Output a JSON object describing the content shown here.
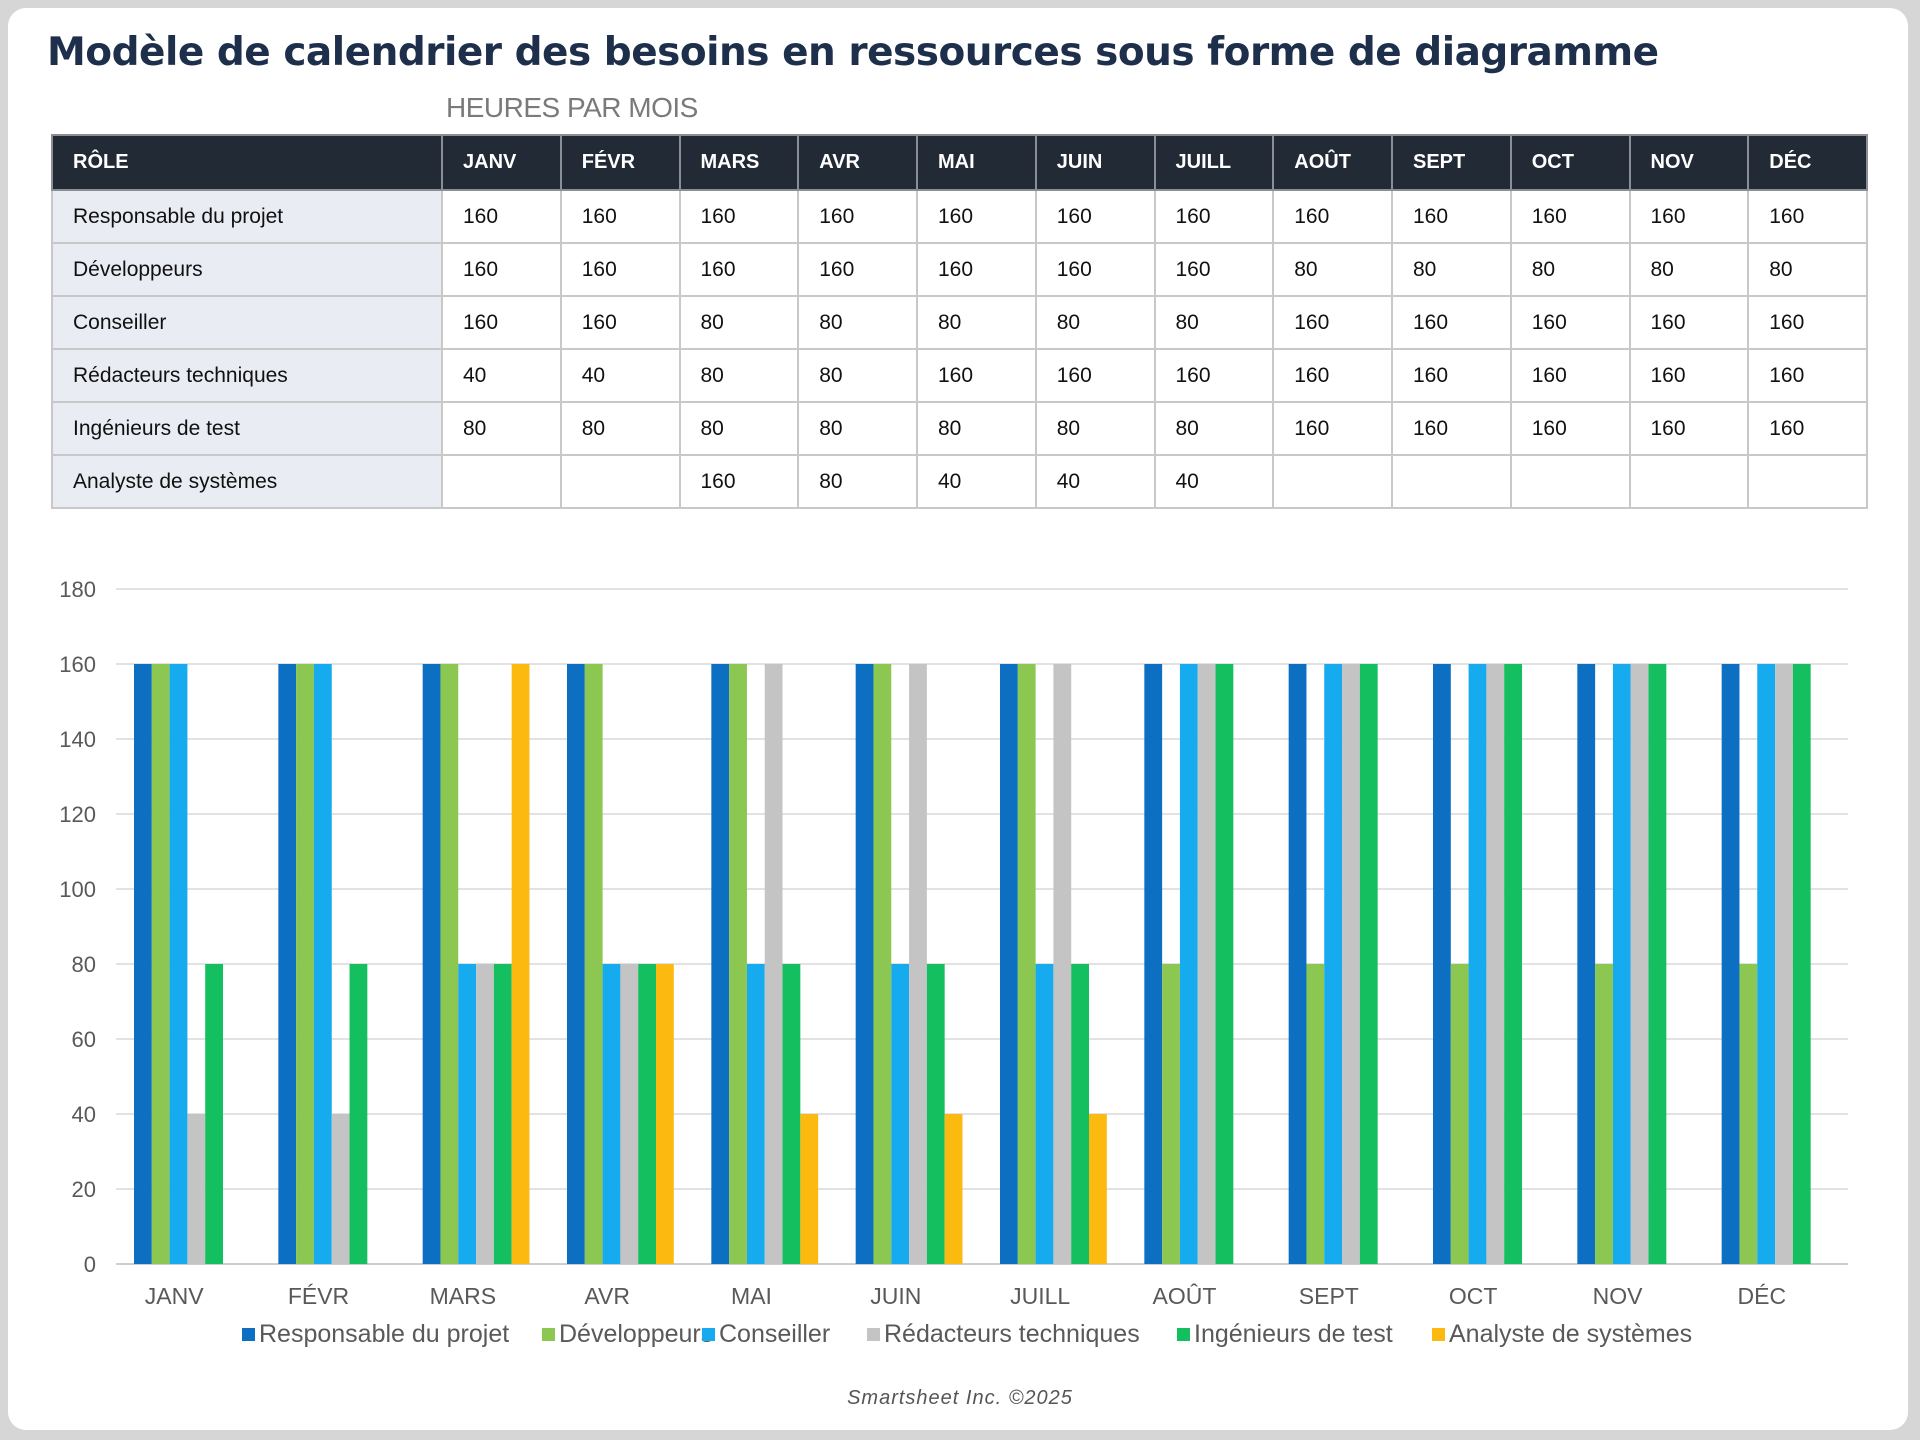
{
  "page": {
    "title": "Modèle de calendrier des besoins en ressources sous forme de diagramme",
    "subtitle": "HEURES PAR MOIS",
    "footer": "Smartsheet Inc. ©2025"
  },
  "table": {
    "role_header": "RÔLE",
    "months": [
      "JANV",
      "FÉVR",
      "MARS",
      "AVR",
      "MAI",
      "JUIN",
      "JUILL",
      "AOÛT",
      "SEPT",
      "OCT",
      "NOV",
      "DÉC"
    ],
    "rows": [
      {
        "role": "Responsable du projet",
        "values": [
          "160",
          "160",
          "160",
          "160",
          "160",
          "160",
          "160",
          "160",
          "160",
          "160",
          "160",
          "160"
        ]
      },
      {
        "role": "Développeurs",
        "values": [
          "160",
          "160",
          "160",
          "160",
          "160",
          "160",
          "160",
          "80",
          "80",
          "80",
          "80",
          "80"
        ]
      },
      {
        "role": "Conseiller",
        "values": [
          "160",
          "160",
          "80",
          "80",
          "80",
          "80",
          "80",
          "160",
          "160",
          "160",
          "160",
          "160"
        ]
      },
      {
        "role": "Rédacteurs techniques",
        "values": [
          "40",
          "40",
          "80",
          "80",
          "160",
          "160",
          "160",
          "160",
          "160",
          "160",
          "160",
          "160"
        ]
      },
      {
        "role": "Ingénieurs de test",
        "values": [
          "80",
          "80",
          "80",
          "80",
          "80",
          "80",
          "80",
          "160",
          "160",
          "160",
          "160",
          "160"
        ]
      },
      {
        "role": "Analyste de systèmes",
        "values": [
          "",
          "",
          "160",
          "80",
          "40",
          "40",
          "40",
          "",
          "",
          "",
          "",
          ""
        ]
      }
    ]
  },
  "chart_data": {
    "type": "bar",
    "title": "",
    "xlabel": "",
    "ylabel": "",
    "ylim": [
      0,
      180
    ],
    "yticks": [
      0,
      20,
      40,
      60,
      80,
      100,
      120,
      140,
      160,
      180
    ],
    "grid": true,
    "legend_position": "bottom",
    "categories": [
      "JANV",
      "FÉVR",
      "MARS",
      "AVR",
      "MAI",
      "JUIN",
      "JUILL",
      "AOÛT",
      "SEPT",
      "OCT",
      "NOV",
      "DÉC"
    ],
    "series": [
      {
        "name": "Responsable du projet",
        "color": "#0c6fc2",
        "values": [
          160,
          160,
          160,
          160,
          160,
          160,
          160,
          160,
          160,
          160,
          160,
          160
        ]
      },
      {
        "name": "Développeurs",
        "color": "#8cc751",
        "values": [
          160,
          160,
          160,
          160,
          160,
          160,
          160,
          80,
          80,
          80,
          80,
          80
        ]
      },
      {
        "name": "Conseiller",
        "color": "#16aaee",
        "values": [
          160,
          160,
          80,
          80,
          80,
          80,
          80,
          160,
          160,
          160,
          160,
          160
        ]
      },
      {
        "name": "Rédacteurs techniques",
        "color": "#c4c4c4",
        "values": [
          40,
          40,
          80,
          80,
          160,
          160,
          160,
          160,
          160,
          160,
          160,
          160
        ]
      },
      {
        "name": "Ingénieurs de test",
        "color": "#14bf5f",
        "values": [
          80,
          80,
          80,
          80,
          80,
          80,
          80,
          160,
          160,
          160,
          160,
          160
        ]
      },
      {
        "name": "Analyste de systèmes",
        "color": "#fcb90f",
        "values": [
          0,
          0,
          160,
          80,
          40,
          40,
          40,
          0,
          0,
          0,
          0,
          0
        ]
      }
    ]
  }
}
